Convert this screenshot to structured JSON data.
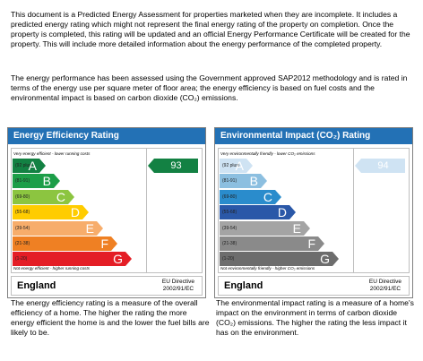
{
  "intro": {
    "paragraph1": "This document is a Predicted Energy Assessment for properties marketed when they are incomplete. It includes a predicted energy rating which might not represent the final energy rating of the property on completion. Once the property is completed, this rating will be updated and an official Energy Performance Certificate will be created for the property. This will include more detailed information about the energy performance of the completed property.",
    "paragraph2": "The energy performance has been assessed using the Government approved SAP2012 methodology and is rated in terms of the energy use per square meter of floor area; the energy efficiency is based on fuel costs and the environmental impact is based on carbon dioxide (CO₂) emissions."
  },
  "efficiency_chart": {
    "title": "Energy Efficiency Rating",
    "scale_top": "Very energy efficient - lower running costs",
    "scale_bottom": "Not energy efficient - higher running costs",
    "current_value": "93",
    "current_value_fraction": 0.93,
    "pointer_color": "#138143",
    "bands": [
      {
        "range": "(92 plus)",
        "letter": "A",
        "color": "#138143"
      },
      {
        "range": "(81-91)",
        "letter": "B",
        "color": "#1c9e48"
      },
      {
        "range": "(69-80)",
        "letter": "C",
        "color": "#8cc540"
      },
      {
        "range": "(55-68)",
        "letter": "D",
        "color": "#ffcc00"
      },
      {
        "range": "(39-54)",
        "letter": "E",
        "color": "#f7ad6b"
      },
      {
        "range": "(21-38)",
        "letter": "F",
        "color": "#ef8023"
      },
      {
        "range": "(1-20)",
        "letter": "G",
        "color": "#e41e26"
      }
    ],
    "country": "England",
    "directive_line1": "EU Directive",
    "directive_line2": "2002/91/EC"
  },
  "environment_chart": {
    "title": "Environmental Impact (CO₂) Rating",
    "scale_top": "Very environmentally friendly - lower CO₂ emissions",
    "scale_bottom": "Not environmentally friendly - higher CO₂ emissions",
    "current_value": "94",
    "current_value_fraction": 0.94,
    "pointer_color": "#cfe3f3",
    "bands": [
      {
        "range": "(92 plus)",
        "letter": "A",
        "color": "#cfe3f3"
      },
      {
        "range": "(81-91)",
        "letter": "B",
        "color": "#8cbfe0"
      },
      {
        "range": "(69-80)",
        "letter": "C",
        "color": "#2a8ccc"
      },
      {
        "range": "(55-68)",
        "letter": "D",
        "color": "#2a58a8"
      },
      {
        "range": "(39-54)",
        "letter": "E",
        "color": "#a4a4a4"
      },
      {
        "range": "(21-38)",
        "letter": "F",
        "color": "#8a8a8a"
      },
      {
        "range": "(1-20)",
        "letter": "G",
        "color": "#6d6d6d"
      }
    ],
    "country": "England",
    "directive_line1": "EU Directive",
    "directive_line2": "2002/91/EC"
  },
  "captions": {
    "efficiency": "The energy efficiency rating is a measure of the overall efficiency of a home. The higher the rating the more energy efficient the home is and the lower the fuel bills are likely to be.",
    "environment": "The environmental impact rating is a measure of a home's impact on the environment in terms of carbon dioxide (CO₂) emissions. The higher the rating the less impact it has on the environment."
  }
}
